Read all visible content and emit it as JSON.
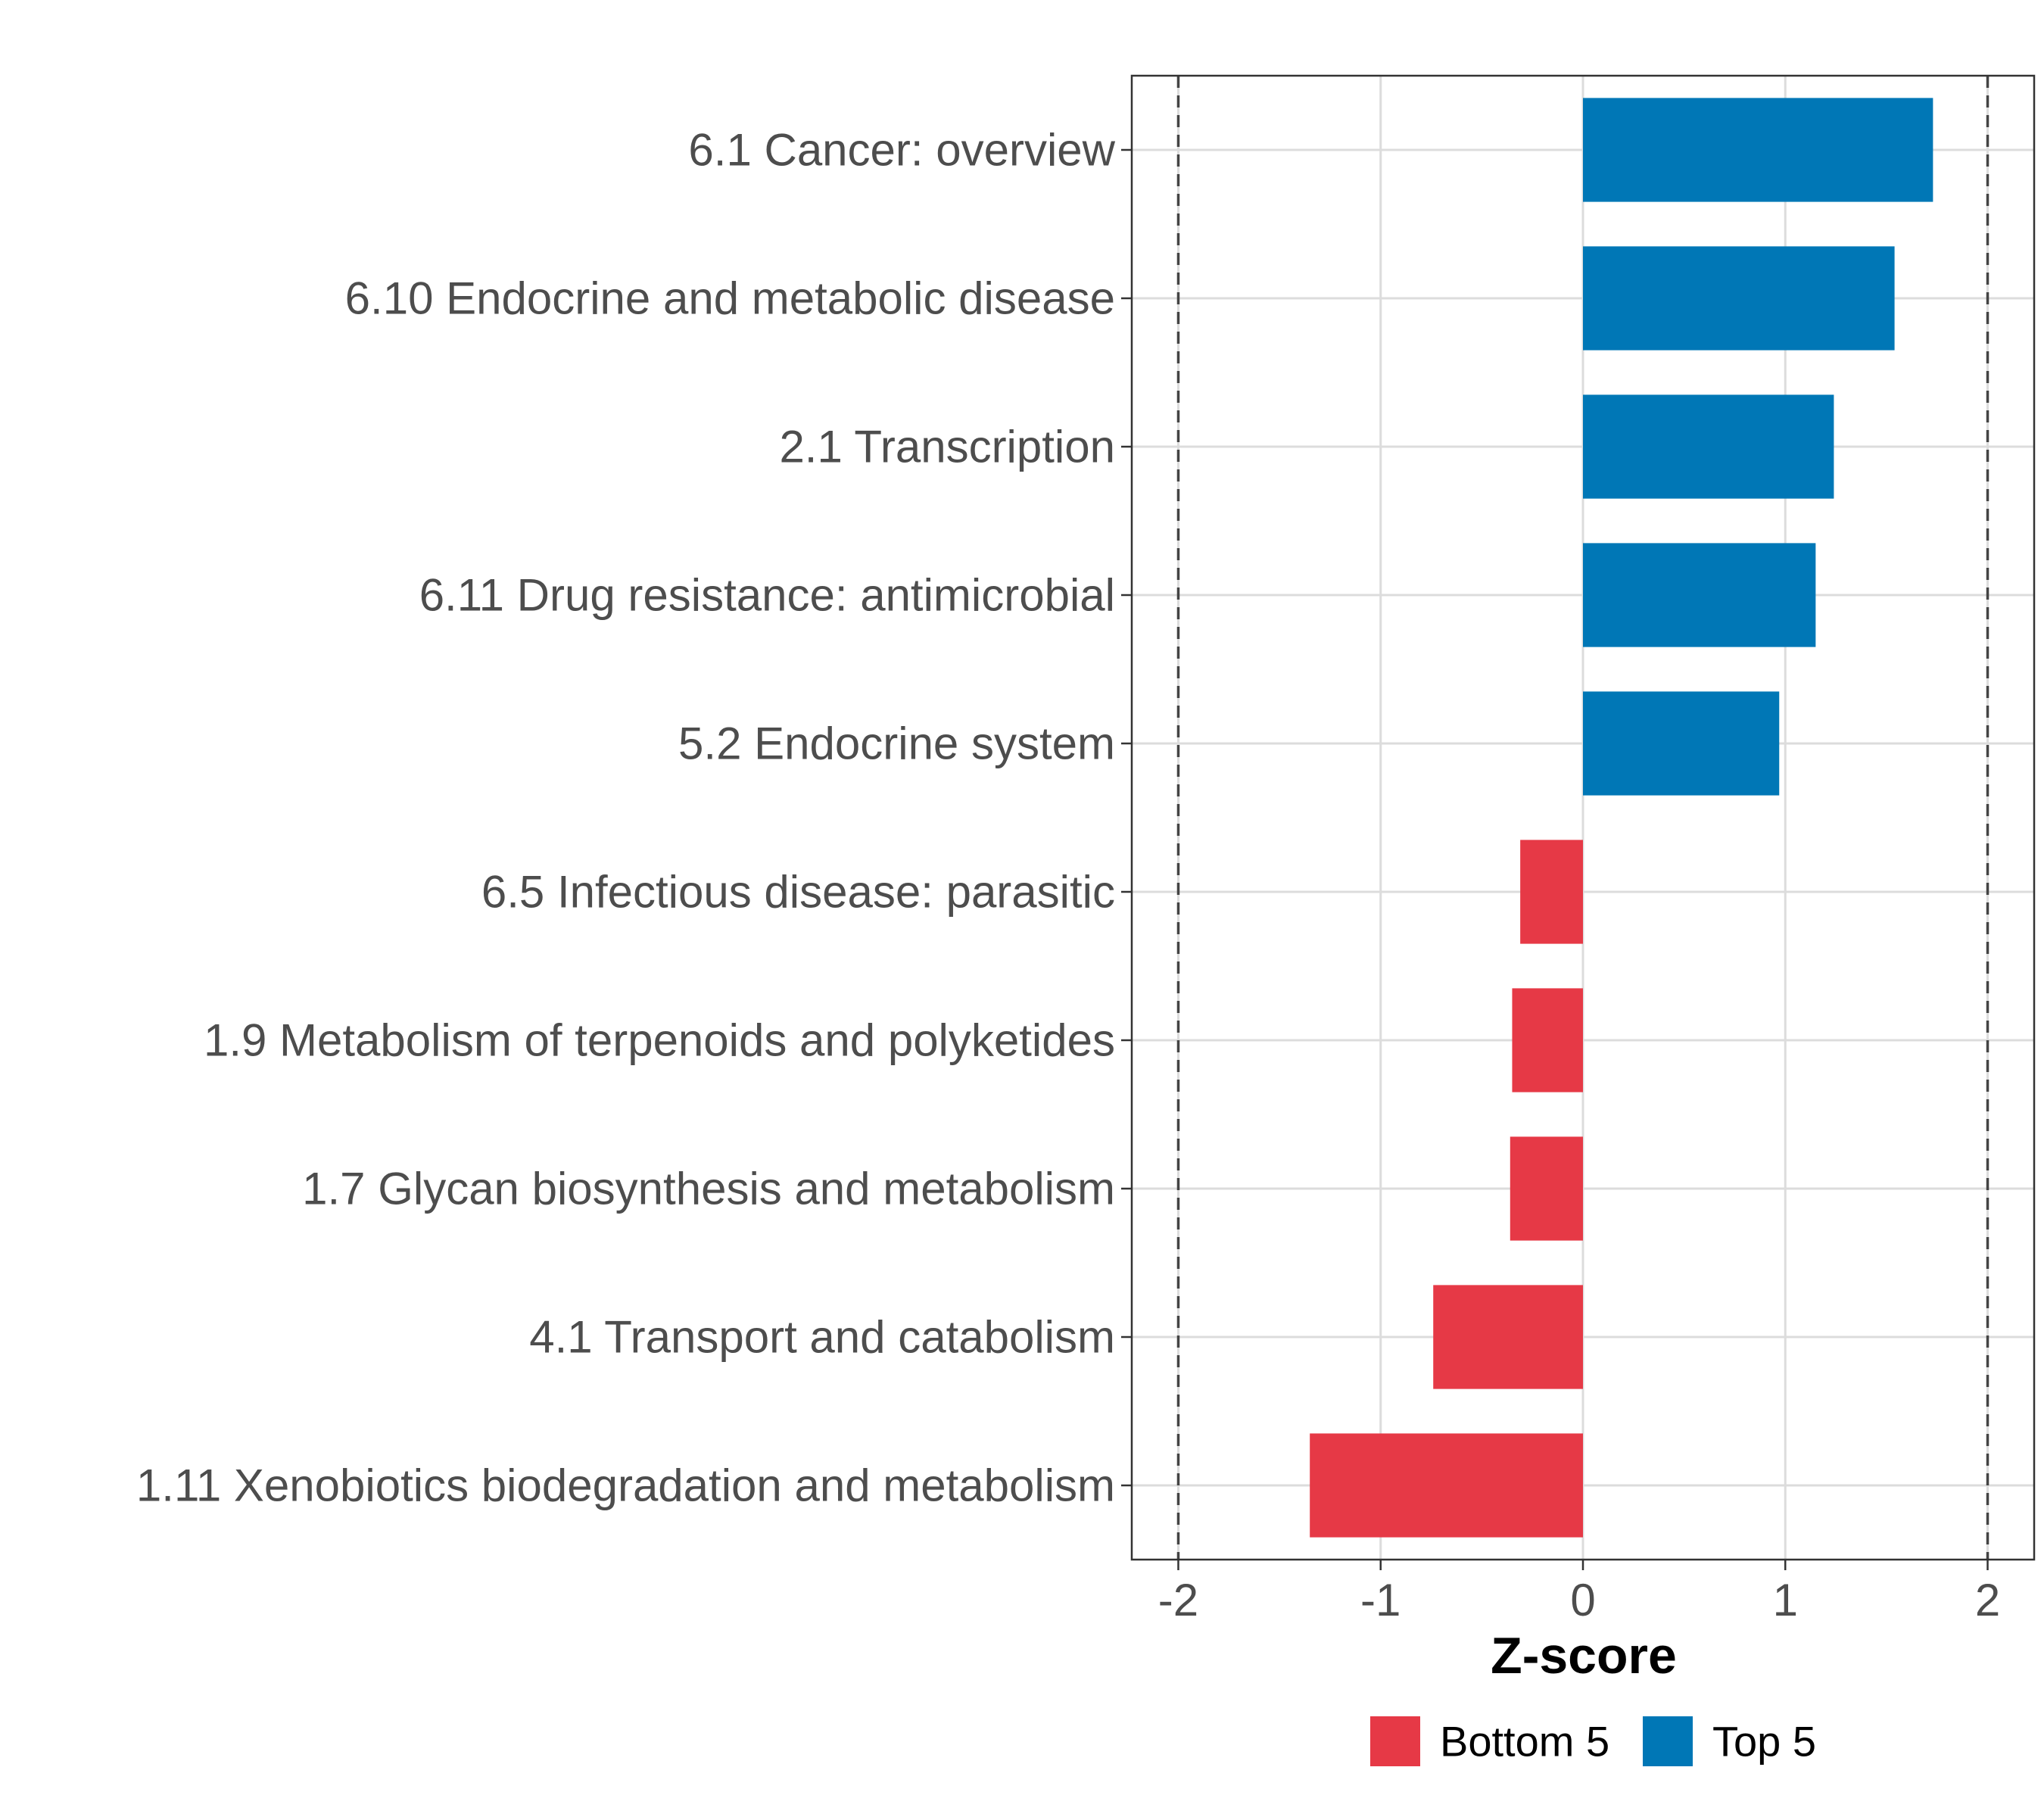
{
  "chart_data": {
    "type": "bar",
    "orientation": "horizontal",
    "title": "",
    "xlabel": "Z-score",
    "ylabel": "",
    "xlim": [
      -2.23,
      2.23
    ],
    "x_ticks": [
      -2,
      -1,
      0,
      1,
      2
    ],
    "x_tick_labels": [
      "-2",
      "-1",
      "0",
      "1",
      "2"
    ],
    "reference_lines": [
      -2,
      2
    ],
    "grid": true,
    "legend_position": "bottom",
    "categories": [
      "6.1 Cancer: overview",
      "6.10 Endocrine and metabolic disease",
      "2.1 Transcription",
      "6.11 Drug resistance: antimicrobial",
      "5.2 Endocrine system",
      "6.5 Infectious disease: parasitic",
      "1.9 Metabolism of terpenoids and polyketides",
      "1.7 Glycan biosynthesis and metabolism",
      "4.1 Transport and catabolism",
      "1.11 Xenobiotics biodegradation and metabolism"
    ],
    "values": [
      1.73,
      1.54,
      1.24,
      1.15,
      0.97,
      -0.31,
      -0.35,
      -0.36,
      -0.74,
      -1.35
    ],
    "groups": [
      "Top 5",
      "Top 5",
      "Top 5",
      "Top 5",
      "Top 5",
      "Bottom 5",
      "Bottom 5",
      "Bottom 5",
      "Bottom 5",
      "Bottom 5"
    ],
    "legend": [
      {
        "name": "Bottom 5",
        "color": "#E63946"
      },
      {
        "name": "Top 5",
        "color": "#0077B6"
      }
    ]
  }
}
